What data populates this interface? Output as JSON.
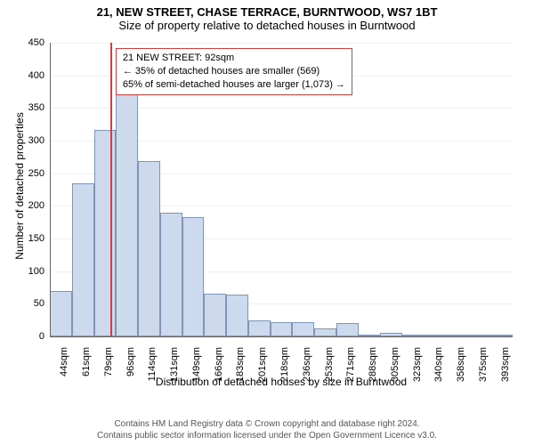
{
  "title_line1": "21, NEW STREET, CHASE TERRACE, BURNTWOOD, WS7 1BT",
  "title_line2": "Size of property relative to detached houses in Burntwood",
  "ylabel": "Number of detached properties",
  "xlabel": "Distribution of detached houses by size in Burntwood",
  "footer_line1": "Contains HM Land Registry data © Crown copyright and database right 2024.",
  "footer_line2": "Contains public sector information licensed under the Open Government Licence v3.0.",
  "chart": {
    "type": "histogram",
    "categories": [
      "44sqm",
      "61sqm",
      "79sqm",
      "96sqm",
      "114sqm",
      "131sqm",
      "149sqm",
      "166sqm",
      "183sqm",
      "201sqm",
      "218sqm",
      "236sqm",
      "253sqm",
      "271sqm",
      "288sqm",
      "305sqm",
      "323sqm",
      "340sqm",
      "358sqm",
      "375sqm",
      "393sqm"
    ],
    "values": [
      70,
      235,
      317,
      390,
      268,
      189,
      183,
      65,
      64,
      25,
      22,
      22,
      12,
      20,
      2,
      5,
      2,
      2,
      3,
      2,
      3
    ],
    "ylim": [
      0,
      450
    ],
    "ytick_step": 50,
    "yticks": [
      0,
      50,
      100,
      150,
      200,
      250,
      300,
      350,
      400,
      450
    ],
    "bar_fill": "#cdd9ed",
    "bar_stroke": "#8094b5",
    "grid_color": "#eef0f2",
    "axis_color": "#666666",
    "background_color": "#ffffff",
    "tick_fontsize": 11,
    "label_fontsize": 12
  },
  "marker": {
    "index_before": 2,
    "fraction_between": 0.74,
    "color": "#d04040",
    "legend_border": "#d04040",
    "line1": "21 NEW STREET: 92sqm",
    "line2": "← 35% of detached houses are smaller (569)",
    "line3": "65% of semi-detached houses are larger (1,073) →"
  }
}
